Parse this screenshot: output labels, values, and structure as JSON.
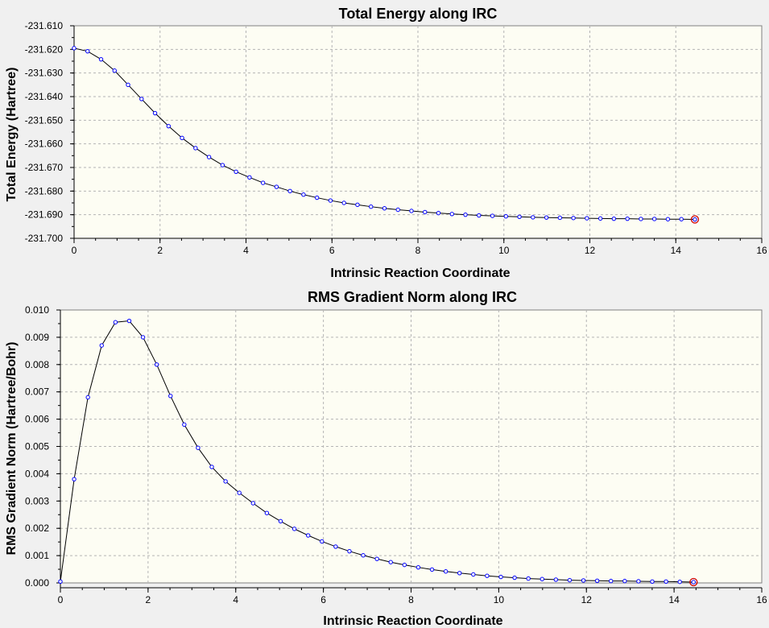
{
  "chart_data": [
    {
      "type": "line",
      "title": "Total Energy along IRC",
      "xlabel": "Intrinsic Reaction Coordinate",
      "ylabel": "Total Energy (Hartree)",
      "xlim": [
        0,
        16
      ],
      "ylim": [
        -231.7,
        -231.61
      ],
      "x_ticks": [
        0,
        2,
        4,
        6,
        8,
        10,
        12,
        14,
        16
      ],
      "x_tick_labels": [
        "0",
        "2",
        "4",
        "6",
        "8",
        "10",
        "12",
        "14",
        "16"
      ],
      "y_ticks": [
        -231.61,
        -231.62,
        -231.63,
        -231.64,
        -231.65,
        -231.66,
        -231.67,
        -231.68,
        -231.69,
        -231.7
      ],
      "y_tick_labels": [
        "-231.610",
        "-231.620",
        "-231.630",
        "-231.640",
        "-231.650",
        "-231.660",
        "-231.670",
        "-231.680",
        "-231.690",
        "-231.700"
      ],
      "grid": true,
      "colors": {
        "line": "#000000",
        "marker": "#0000ff",
        "highlight": "#d00000",
        "plot_background": "#fdfdf3"
      },
      "series": [
        {
          "x": [
            0,
            0.314,
            0.628,
            0.942,
            1.256,
            1.57,
            1.884,
            2.198,
            2.512,
            2.826,
            3.14,
            3.454,
            3.768,
            4.082,
            4.396,
            4.71,
            5.024,
            5.338,
            5.652,
            5.966,
            6.28,
            6.594,
            6.908,
            7.222,
            7.536,
            7.85,
            8.164,
            8.478,
            8.792,
            9.106,
            9.42,
            9.734,
            10.048,
            10.362,
            10.676,
            10.99,
            11.304,
            11.618,
            11.932,
            12.246,
            12.56,
            12.874,
            13.188,
            13.502,
            13.816,
            14.13,
            14.444
          ],
          "values": [
            -231.6195,
            -231.6208,
            -231.6242,
            -231.629,
            -231.635,
            -231.641,
            -231.647,
            -231.6525,
            -231.6575,
            -231.6618,
            -231.6656,
            -231.669,
            -231.6718,
            -231.6742,
            -231.6765,
            -231.6782,
            -231.68,
            -231.6815,
            -231.6828,
            -231.684,
            -231.685,
            -231.6858,
            -231.6866,
            -231.6873,
            -231.6879,
            -231.6884,
            -231.6889,
            -231.6893,
            -231.6897,
            -231.69,
            -231.6903,
            -231.6905,
            -231.6907,
            -231.6909,
            -231.6911,
            -231.6912,
            -231.6913,
            -231.6914,
            -231.6915,
            -231.6916,
            -231.6917,
            -231.6917,
            -231.6918,
            -231.6918,
            -231.6919,
            -231.6919,
            -231.692
          ],
          "highlight_last": true
        }
      ]
    },
    {
      "type": "line",
      "title": "RMS Gradient Norm along IRC",
      "xlabel": "Intrinsic Reaction Coordinate",
      "ylabel": "RMS Gradient Norm (Hartree/Bohr)",
      "xlim": [
        0,
        16
      ],
      "ylim": [
        0.0,
        0.01
      ],
      "x_ticks": [
        0,
        2,
        4,
        6,
        8,
        10,
        12,
        14,
        16
      ],
      "x_tick_labels": [
        "0",
        "2",
        "4",
        "6",
        "8",
        "10",
        "12",
        "14",
        "16"
      ],
      "y_ticks": [
        0.0,
        0.001,
        0.002,
        0.003,
        0.004,
        0.005,
        0.006,
        0.007,
        0.008,
        0.009,
        0.01
      ],
      "y_tick_labels": [
        "0.000",
        "0.001",
        "0.002",
        "0.003",
        "0.004",
        "0.005",
        "0.006",
        "0.007",
        "0.008",
        "0.009",
        "0.010"
      ],
      "grid": true,
      "colors": {
        "line": "#000000",
        "marker": "#0000ff",
        "highlight": "#d00000",
        "plot_background": "#fdfdf3"
      },
      "series": [
        {
          "x": [
            0,
            0.314,
            0.628,
            0.942,
            1.256,
            1.57,
            1.884,
            2.198,
            2.512,
            2.826,
            3.14,
            3.454,
            3.768,
            4.082,
            4.396,
            4.71,
            5.024,
            5.338,
            5.652,
            5.966,
            6.28,
            6.594,
            6.908,
            7.222,
            7.536,
            7.85,
            8.164,
            8.478,
            8.792,
            9.106,
            9.42,
            9.734,
            10.048,
            10.362,
            10.676,
            10.99,
            11.304,
            11.618,
            11.932,
            12.246,
            12.56,
            12.874,
            13.188,
            13.502,
            13.816,
            14.13,
            14.444
          ],
          "values": [
            5e-05,
            0.0038,
            0.0068,
            0.0087,
            0.00955,
            0.0096,
            0.009,
            0.008,
            0.00685,
            0.0058,
            0.00495,
            0.00425,
            0.00372,
            0.0033,
            0.00292,
            0.00256,
            0.00226,
            0.00198,
            0.00174,
            0.00152,
            0.00133,
            0.00116,
            0.00101,
            0.00088,
            0.00076,
            0.00066,
            0.00057,
            0.00049,
            0.00042,
            0.00036,
            0.00031,
            0.00026,
            0.00022,
            0.00019,
            0.00016,
            0.00014,
            0.00012,
            0.0001,
            9e-05,
            8e-05,
            7e-05,
            7e-05,
            6e-05,
            5e-05,
            5e-05,
            4e-05,
            3e-05
          ],
          "highlight_last": true
        }
      ]
    }
  ]
}
